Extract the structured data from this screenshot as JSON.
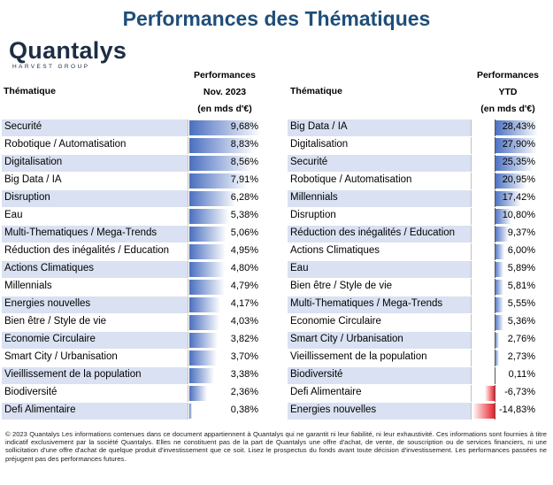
{
  "title": "Performances des Thématiques",
  "logo": {
    "name": "Quantalys",
    "subtitle": "HARVEST GROUP"
  },
  "left": {
    "label_header": "Thématique",
    "col_header": [
      "Performances",
      "Nov. 2023",
      "(en mds d'€)"
    ]
  },
  "right": {
    "label_header": "Thématique",
    "col_header": [
      "Performances",
      "YTD",
      "(en mds d'€)"
    ]
  },
  "chart_data": [
    {
      "type": "table",
      "title": "Performances Nov. 2023",
      "unit": "%",
      "categories": [
        "Securité",
        "Robotique / Automatisation",
        "Digitalisation",
        "Big Data / IA",
        "Disruption",
        "Eau",
        "Multi-Thematiques / Mega-Trends",
        "Réduction des inégalités / Education",
        "Actions Climatiques",
        "Millennials",
        "Energies nouvelles",
        "Bien être / Style de vie",
        "Economie Circulaire",
        "Smart City / Urbanisation",
        "Vieillissement de la population",
        "Biodiversité",
        "Defi Alimentaire"
      ],
      "values": [
        9.68,
        8.83,
        8.56,
        7.91,
        6.28,
        5.38,
        5.06,
        4.95,
        4.8,
        4.79,
        4.17,
        4.03,
        3.82,
        3.7,
        3.38,
        2.36,
        0.38
      ],
      "labels": [
        "9,68%",
        "8,83%",
        "8,56%",
        "7,91%",
        "6,28%",
        "5,38%",
        "5,06%",
        "4,95%",
        "4,80%",
        "4,79%",
        "4,17%",
        "4,03%",
        "3,82%",
        "3,70%",
        "3,38%",
        "2,36%",
        "0,38%"
      ]
    },
    {
      "type": "table",
      "title": "Performances YTD",
      "unit": "%",
      "categories": [
        "Big Data / IA",
        "Digitalisation",
        "Securité",
        "Robotique / Automatisation",
        "Millennials",
        "Disruption",
        "Réduction des inégalités / Education",
        "Actions Climatiques",
        "Eau",
        "Bien être / Style de vie",
        "Multi-Thematiques / Mega-Trends",
        "Economie Circulaire",
        "Smart City / Urbanisation",
        "Vieillissement de la population",
        "Biodiversité",
        "Defi Alimentaire",
        "Energies nouvelles"
      ],
      "values": [
        28.43,
        27.9,
        25.35,
        20.95,
        17.42,
        10.8,
        9.37,
        6.0,
        5.89,
        5.81,
        5.55,
        5.36,
        2.76,
        2.73,
        0.11,
        -6.73,
        -14.83
      ],
      "labels": [
        "28,43%",
        "27,90%",
        "25,35%",
        "20,95%",
        "17,42%",
        "10,80%",
        "9,37%",
        "6,00%",
        "5,89%",
        "5,81%",
        "5,55%",
        "5,36%",
        "2,76%",
        "2,73%",
        "0,11%",
        "-6,73%",
        "-14,83%"
      ]
    }
  ],
  "footer": "© 2023 Quantalys Les informations contenues dans ce document appartiennent à Quantalys qui ne garantit ni leur fiabilité, ni leur exhaustivité. Ces informations sont fournies à titre indicatif exclusivement par la société Quantalys. Elles ne constituent pas de la part de Quantalys une offre d'achat, de vente, de souscription ou de services financiers, ni une sollicitation d'une offre d'achat de quelque produit d'investissement que ce soit. Lisez le prospectus du fonds avant toute décision d'investissement. Les performances passées ne préjugent pas des performances futures."
}
